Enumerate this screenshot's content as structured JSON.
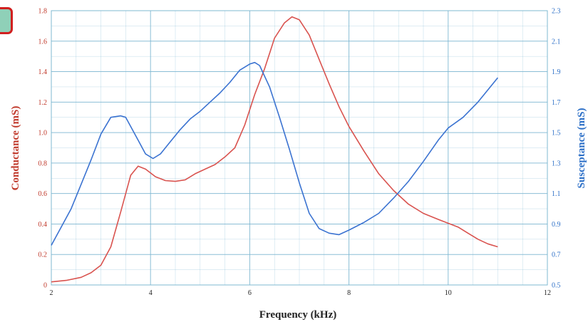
{
  "colors": {
    "conductance": "#d9534f",
    "susceptance": "#3b73d1",
    "grid": "#7fb8d2",
    "background": "#ffffff",
    "badge_fill": "#8fd0b8",
    "badge_border": "#d11f1f"
  },
  "chart_data": {
    "type": "line",
    "xlabel": "Frequency (kHz)",
    "ylabel_left": "Conductance (mS)",
    "ylabel_right": "Susceptance (mS)",
    "xlim": [
      2,
      12
    ],
    "ylim_left": [
      0,
      1.8
    ],
    "ylim_right": [
      0.5,
      2.3
    ],
    "x_ticks": [
      "2",
      "4",
      "6",
      "8",
      "10",
      "12"
    ],
    "y_left_ticks": [
      "0",
      "0.2",
      "0.4",
      "0.6",
      "0.8",
      "1.0",
      "1.2",
      "1.4",
      "1.6",
      "1.8"
    ],
    "y_right_ticks": [
      "0.5",
      "0.7",
      "0.9",
      "1.1",
      "1.3",
      "1.5",
      "1.7",
      "1.9",
      "2.1",
      "2.3"
    ],
    "grid": true,
    "series": [
      {
        "axis": "left",
        "x": [
          2.0,
          2.3,
          2.6,
          2.8,
          3.0,
          3.2,
          3.4,
          3.6,
          3.75,
          3.9,
          4.1,
          4.3,
          4.5,
          4.7,
          4.9,
          5.1,
          5.3,
          5.5,
          5.7,
          5.9,
          6.1,
          6.3,
          6.5,
          6.7,
          6.85,
          7.0,
          7.2,
          7.4,
          7.6,
          7.8,
          8.0,
          8.3,
          8.6,
          8.9,
          9.2,
          9.5,
          9.8,
          10.0,
          10.2,
          10.4,
          10.6,
          10.8,
          11.0
        ],
        "y": [
          0.02,
          0.03,
          0.05,
          0.08,
          0.13,
          0.25,
          0.48,
          0.72,
          0.78,
          0.76,
          0.71,
          0.685,
          0.68,
          0.69,
          0.73,
          0.76,
          0.79,
          0.84,
          0.9,
          1.05,
          1.25,
          1.42,
          1.62,
          1.72,
          1.76,
          1.74,
          1.64,
          1.48,
          1.32,
          1.17,
          1.04,
          0.88,
          0.73,
          0.62,
          0.53,
          0.47,
          0.43,
          0.405,
          0.38,
          0.34,
          0.3,
          0.27,
          0.25
        ]
      },
      {
        "axis": "right",
        "x": [
          2.0,
          2.2,
          2.4,
          2.6,
          2.8,
          3.0,
          3.2,
          3.4,
          3.5,
          3.6,
          3.75,
          3.9,
          4.05,
          4.2,
          4.4,
          4.6,
          4.8,
          5.0,
          5.2,
          5.4,
          5.6,
          5.8,
          6.0,
          6.1,
          6.2,
          6.4,
          6.6,
          6.8,
          7.0,
          7.2,
          7.4,
          7.6,
          7.8,
          8.0,
          8.3,
          8.6,
          8.9,
          9.2,
          9.5,
          9.8,
          10.0,
          10.3,
          10.6,
          11.0
        ],
        "y": [
          0.76,
          0.88,
          1.0,
          1.16,
          1.32,
          1.49,
          1.6,
          1.61,
          1.6,
          1.54,
          1.45,
          1.36,
          1.33,
          1.36,
          1.44,
          1.52,
          1.59,
          1.64,
          1.7,
          1.76,
          1.83,
          1.91,
          1.95,
          1.96,
          1.94,
          1.8,
          1.6,
          1.39,
          1.17,
          0.97,
          0.87,
          0.84,
          0.83,
          0.86,
          0.91,
          0.97,
          1.07,
          1.18,
          1.31,
          1.45,
          1.53,
          1.6,
          1.7,
          1.86
        ]
      }
    ]
  }
}
